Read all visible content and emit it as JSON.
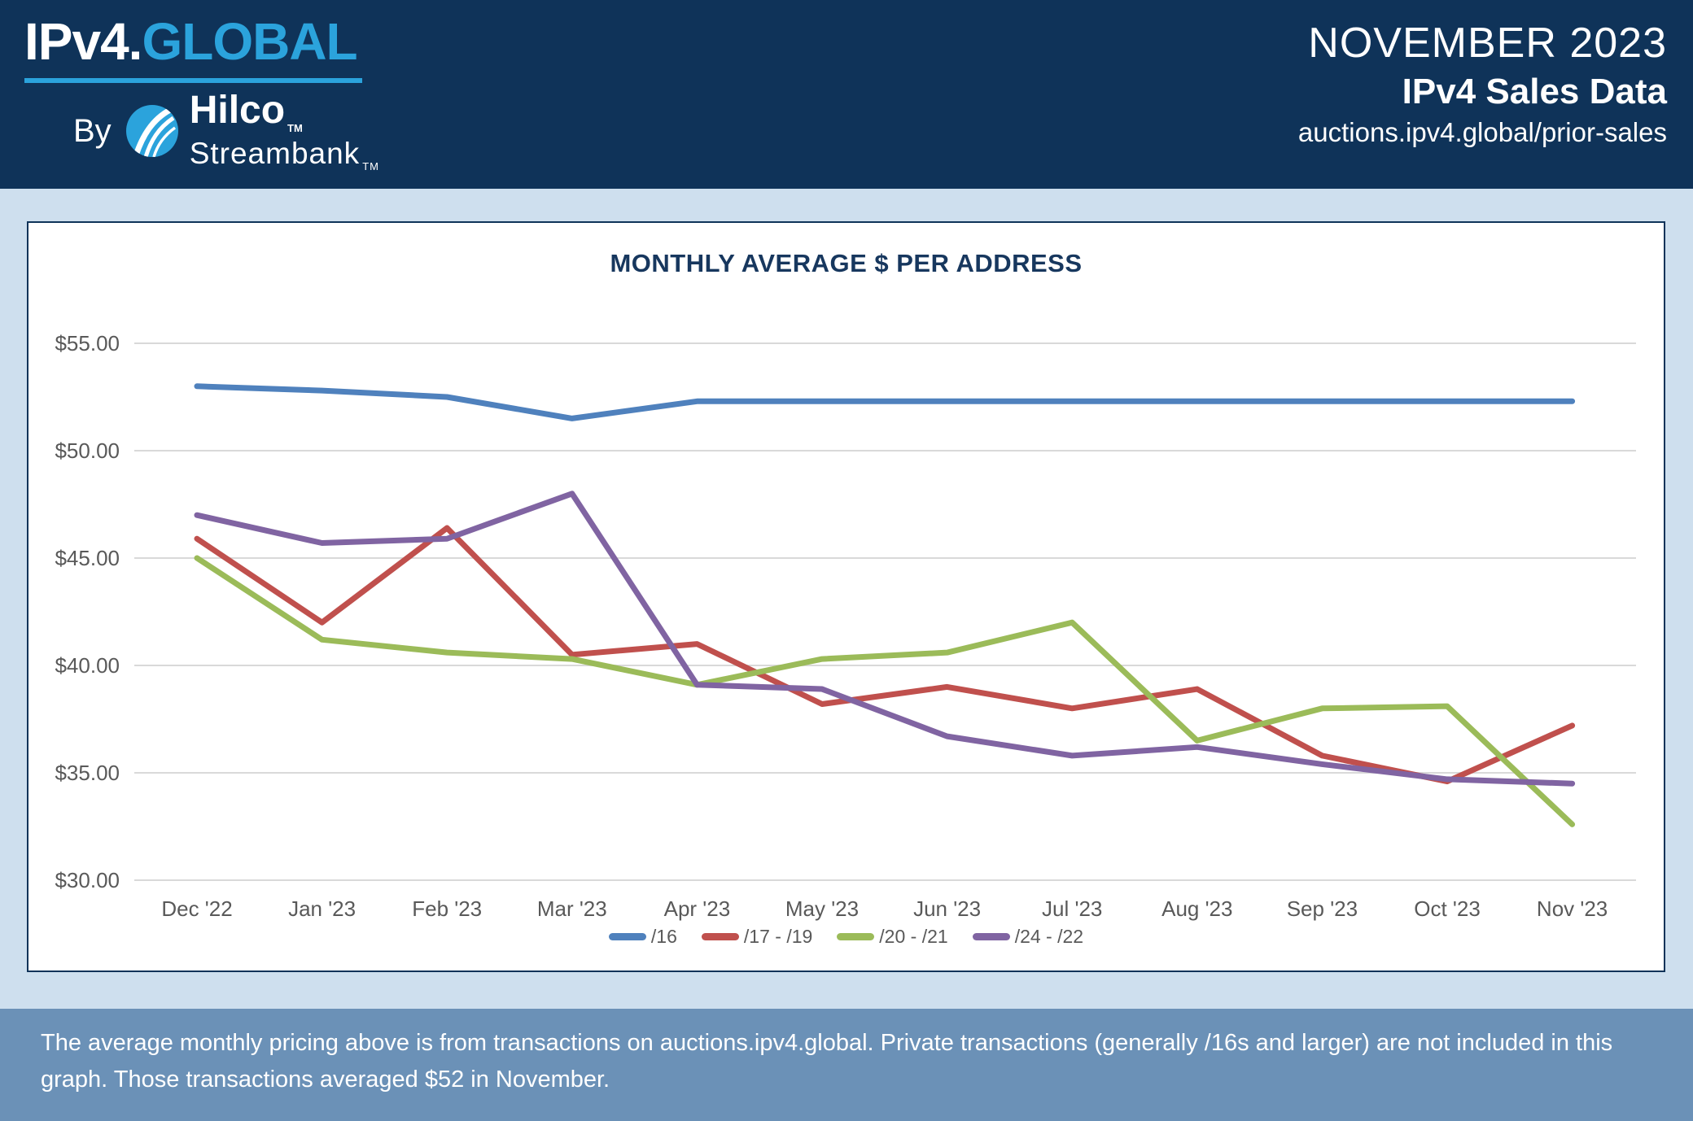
{
  "header": {
    "logo": {
      "brand_primary": "IPv4.",
      "brand_secondary": "GLOBAL",
      "by_label": "By",
      "partner_name": "Hilco",
      "partner_sub": "Streambank",
      "trademark": "TM",
      "accent_color": "#2BA3DC"
    },
    "right": {
      "period": "NOVEMBER 2023",
      "title": "IPv4 Sales Data",
      "url": "auctions.ipv4.global/prior-sales"
    }
  },
  "chart_data": {
    "type": "line",
    "title": "MONTHLY AVERAGE $ PER ADDRESS",
    "categories": [
      "Dec '22",
      "Jan '23",
      "Feb '23",
      "Mar '23",
      "Apr '23",
      "May '23",
      "Jun '23",
      "Jul '23",
      "Aug '23",
      "Sep '23",
      "Oct '23",
      "Nov '23"
    ],
    "series": [
      {
        "name": "/16",
        "color": "#4F81BD",
        "values": [
          53.0,
          52.8,
          52.5,
          51.5,
          52.3,
          52.3,
          52.3,
          52.3,
          52.3,
          52.3,
          52.3,
          52.3
        ]
      },
      {
        "name": "/17 - /19",
        "color": "#C0504D",
        "values": [
          45.9,
          42.0,
          46.4,
          40.5,
          41.0,
          38.2,
          39.0,
          38.0,
          38.9,
          35.8,
          34.6,
          37.2
        ]
      },
      {
        "name": "/20 - /21",
        "color": "#9BBB59",
        "values": [
          45.0,
          41.2,
          40.6,
          40.3,
          39.1,
          40.3,
          40.6,
          42.0,
          36.5,
          38.0,
          38.1,
          32.6
        ]
      },
      {
        "name": "/24 - /22",
        "color": "#8064A2",
        "values": [
          47.0,
          45.7,
          45.9,
          48.0,
          39.1,
          38.9,
          36.7,
          35.8,
          36.2,
          35.4,
          34.7,
          34.5
        ]
      }
    ],
    "xlabel": "",
    "ylabel": "",
    "ylim": [
      30,
      55
    ],
    "yticks": [
      30,
      35,
      40,
      45,
      50,
      55
    ],
    "ytick_prefix": "$",
    "ytick_decimals": 2,
    "grid": true,
    "legend_position": "bottom",
    "gridline_color": "#D9D9D9",
    "axis_text_color": "#595959"
  },
  "footer": {
    "note": "The average monthly pricing above is from transactions on auctions.ipv4.global. Private transactions (generally /16s and larger) are not included in this graph. Those transactions averaged $52 in November."
  }
}
